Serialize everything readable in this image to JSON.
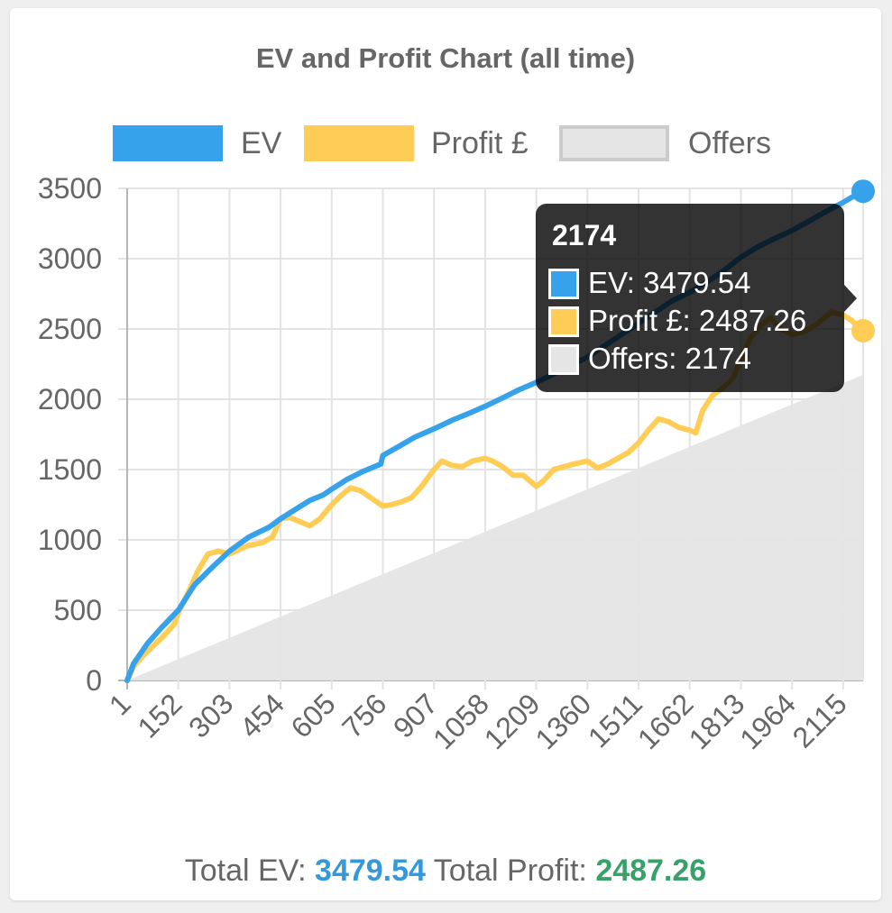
{
  "page": {
    "footer": {
      "ev_label": "Total EV:",
      "ev_value": "3479.54",
      "profit_label": "Total Profit:",
      "profit_value": "2487.26",
      "ev_color": "#3498db",
      "profit_color": "#38a169"
    }
  },
  "tooltip": {
    "title": "2174",
    "rows": [
      {
        "text": "EV: 3479.54",
        "swatch_color": "#36a2eb"
      },
      {
        "text": "Profit £: 2487.26",
        "swatch_color": "#ffcd56"
      },
      {
        "text": "Offers: 2174",
        "swatch_color": "#e5e5e5"
      }
    ]
  },
  "chart_data": {
    "type": "line",
    "title": "EV and Profit Chart (all time)",
    "xlabel": "",
    "ylabel": "",
    "ylim": [
      0,
      3500
    ],
    "xlim": [
      1,
      2174
    ],
    "y_ticks": [
      0,
      500,
      1000,
      1500,
      2000,
      2500,
      3000,
      3500
    ],
    "x_tick_labels": [
      "1",
      "152",
      "303",
      "454",
      "605",
      "756",
      "907",
      "1058",
      "1209",
      "1360",
      "1511",
      "1662",
      "1813",
      "1964",
      "2115"
    ],
    "grid": true,
    "legend_position": "top",
    "series": [
      {
        "name": "EV",
        "kind": "line",
        "color": "#36a2eb",
        "x": [
          1,
          20,
          60,
          100,
          152,
          200,
          250,
          303,
          360,
          420,
          454,
          500,
          540,
          580,
          605,
          650,
          700,
          750,
          756,
          800,
          850,
          907,
          960,
          1010,
          1058,
          1110,
          1160,
          1209,
          1260,
          1310,
          1360,
          1410,
          1460,
          1511,
          1560,
          1610,
          1662,
          1710,
          1760,
          1813,
          1860,
          1910,
          1964,
          2010,
          2060,
          2115,
          2150,
          2174
        ],
        "values": [
          0,
          120,
          260,
          370,
          500,
          680,
          800,
          920,
          1020,
          1090,
          1150,
          1220,
          1280,
          1320,
          1360,
          1430,
          1490,
          1540,
          1600,
          1660,
          1730,
          1790,
          1850,
          1900,
          1950,
          2010,
          2070,
          2120,
          2180,
          2240,
          2300,
          2380,
          2460,
          2540,
          2620,
          2700,
          2760,
          2830,
          2910,
          3010,
          3080,
          3140,
          3200,
          3260,
          3330,
          3400,
          3450,
          3479.54
        ]
      },
      {
        "name": "Profit £",
        "kind": "line",
        "color": "#ffcd56",
        "x": [
          1,
          20,
          50,
          80,
          110,
          140,
          152,
          180,
          210,
          240,
          270,
          303,
          330,
          360,
          400,
          430,
          454,
          480,
          510,
          540,
          570,
          605,
          630,
          660,
          690,
          720,
          756,
          780,
          810,
          840,
          870,
          907,
          930,
          960,
          990,
          1020,
          1058,
          1080,
          1110,
          1140,
          1170,
          1209,
          1230,
          1260,
          1290,
          1320,
          1360,
          1390,
          1420,
          1450,
          1480,
          1511,
          1540,
          1570,
          1600,
          1630,
          1662,
          1680,
          1700,
          1730,
          1760,
          1790,
          1813,
          1840,
          1870,
          1900,
          1930,
          1964,
          2000,
          2040,
          2080,
          2115,
          2140,
          2174
        ],
        "values": [
          0,
          100,
          180,
          250,
          320,
          400,
          480,
          620,
          780,
          900,
          920,
          900,
          930,
          960,
          980,
          1020,
          1150,
          1160,
          1130,
          1100,
          1150,
          1250,
          1310,
          1370,
          1350,
          1300,
          1240,
          1250,
          1270,
          1300,
          1380,
          1500,
          1560,
          1530,
          1520,
          1560,
          1580,
          1560,
          1520,
          1460,
          1460,
          1380,
          1420,
          1500,
          1520,
          1540,
          1560,
          1510,
          1540,
          1580,
          1620,
          1690,
          1780,
          1860,
          1840,
          1800,
          1780,
          1760,
          1920,
          2030,
          2080,
          2150,
          2280,
          2430,
          2520,
          2580,
          2500,
          2460,
          2480,
          2540,
          2620,
          2600,
          2560,
          2487.26
        ]
      },
      {
        "name": "Offers",
        "kind": "area",
        "color": "#e5e5e5",
        "x": [
          1,
          2174
        ],
        "values": [
          1,
          2174
        ]
      }
    ]
  }
}
